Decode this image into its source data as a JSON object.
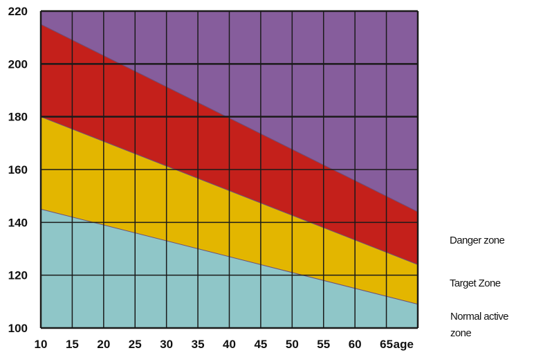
{
  "chart_data": {
    "type": "area",
    "title": "",
    "xlabel": "age",
    "ylabel": "",
    "xlim": [
      10,
      70
    ],
    "ylim": [
      100,
      220
    ],
    "x_ticks": [
      "10",
      "15",
      "20",
      "25",
      "30",
      "35",
      "40",
      "45",
      "50",
      "55",
      "60",
      "65"
    ],
    "y_ticks": [
      "100",
      "120",
      "140",
      "160",
      "180",
      "200",
      "220"
    ],
    "grid": true,
    "legend": "right",
    "boundaries": {
      "x": [
        10,
        70
      ],
      "normal_upper": [
        145,
        109
      ],
      "target_upper": [
        180,
        124
      ],
      "danger_upper": [
        215,
        144
      ]
    },
    "zones": [
      {
        "key": "normal",
        "label_lines": [
          "Normal active",
          "zone"
        ],
        "color": "#8fc6c8"
      },
      {
        "key": "target",
        "label_lines": [
          "Target Zone"
        ],
        "color": "#e3b600"
      },
      {
        "key": "danger",
        "label_lines": [
          "Danger zone"
        ],
        "color": "#c4201b"
      },
      {
        "key": "top",
        "label_lines": [],
        "color": "#865d9c"
      }
    ],
    "colors": {
      "grid": "#1a1a1a",
      "boundary": "#6b4f7a"
    }
  }
}
